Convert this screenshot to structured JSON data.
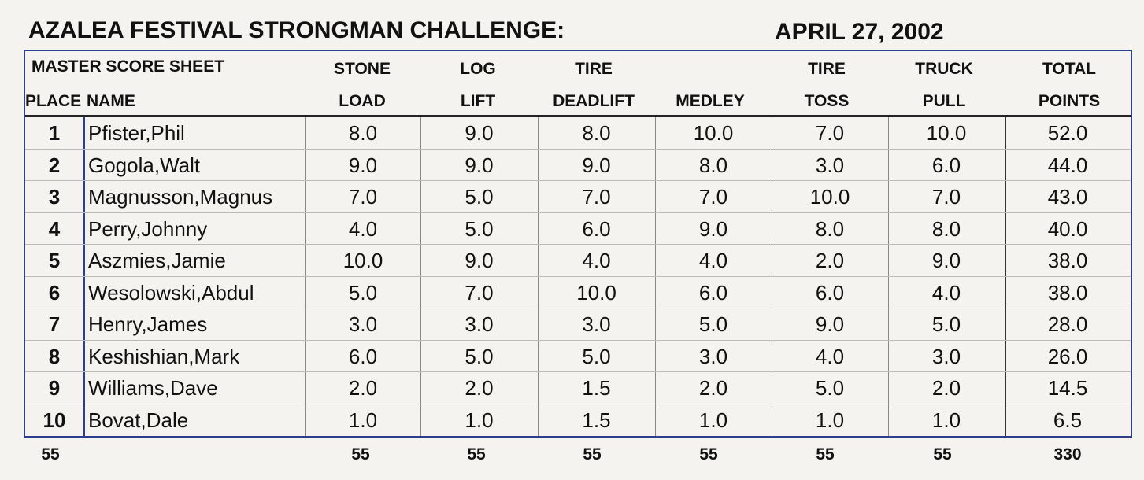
{
  "header": {
    "title": "AZALEA FESTIVAL STRONGMAN CHALLENGE:",
    "date": "APRIL 27, 2002"
  },
  "table": {
    "sheet_label": "MASTER SCORE SHEET",
    "columns": [
      {
        "line1": "",
        "line2": "PLACE"
      },
      {
        "line1": "",
        "line2": "NAME"
      },
      {
        "line1": "STONE",
        "line2": "LOAD"
      },
      {
        "line1": "LOG",
        "line2": "LIFT"
      },
      {
        "line1": "TIRE",
        "line2": "DEADLIFT"
      },
      {
        "line1": "",
        "line2": "MEDLEY"
      },
      {
        "line1": "TIRE",
        "line2": "TOSS"
      },
      {
        "line1": "TRUCK",
        "line2": "PULL"
      },
      {
        "line1": "TOTAL",
        "line2": "POINTS"
      }
    ],
    "rows": [
      [
        "1",
        "Pfister,Phil",
        "8.0",
        "9.0",
        "8.0",
        "10.0",
        "7.0",
        "10.0",
        "52.0"
      ],
      [
        "2",
        "Gogola,Walt",
        "9.0",
        "9.0",
        "9.0",
        "8.0",
        "3.0",
        "6.0",
        "44.0"
      ],
      [
        "3",
        "Magnusson,Magnus",
        "7.0",
        "5.0",
        "7.0",
        "7.0",
        "10.0",
        "7.0",
        "43.0"
      ],
      [
        "4",
        "Perry,Johnny",
        "4.0",
        "5.0",
        "6.0",
        "9.0",
        "8.0",
        "8.0",
        "40.0"
      ],
      [
        "5",
        "Aszmies,Jamie",
        "10.0",
        "9.0",
        "4.0",
        "4.0",
        "2.0",
        "9.0",
        "38.0"
      ],
      [
        "6",
        "Wesolowski,Abdul",
        "5.0",
        "7.0",
        "10.0",
        "6.0",
        "6.0",
        "4.0",
        "38.0"
      ],
      [
        "7",
        "Henry,James",
        "3.0",
        "3.0",
        "3.0",
        "5.0",
        "9.0",
        "5.0",
        "28.0"
      ],
      [
        "8",
        "Keshishian,Mark",
        "6.0",
        "5.0",
        "5.0",
        "3.0",
        "4.0",
        "3.0",
        "26.0"
      ],
      [
        "9",
        "Williams,Dave",
        "2.0",
        "2.0",
        "1.5",
        "2.0",
        "5.0",
        "2.0",
        "14.5"
      ],
      [
        "10",
        "Bovat,Dale",
        "1.0",
        "1.0",
        "1.5",
        "1.0",
        "1.0",
        "1.0",
        "6.5"
      ]
    ],
    "totals": [
      "55",
      "55",
      "55",
      "55",
      "55",
      "55",
      "55",
      "330"
    ]
  }
}
